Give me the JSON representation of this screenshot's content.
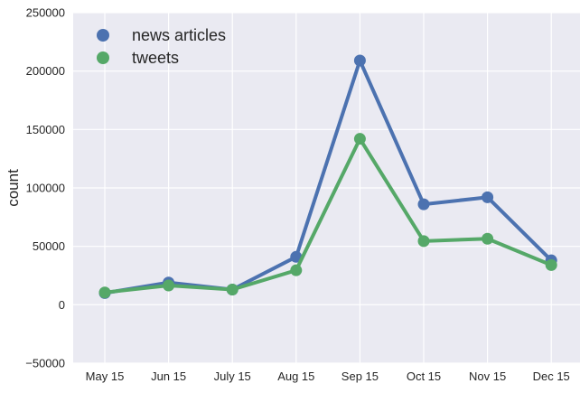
{
  "chart_data": {
    "type": "line",
    "title": "",
    "xlabel": "",
    "ylabel": "count",
    "categories": [
      "May 15",
      "Jun 15",
      "July 15",
      "Aug 15",
      "Sep 15",
      "Oct 15",
      "Nov 15",
      "Dec 15"
    ],
    "ylim": [
      -50000,
      250000
    ],
    "yticks": [
      -50000,
      0,
      50000,
      100000,
      150000,
      200000,
      250000
    ],
    "ytick_labels": [
      "−50000",
      "0",
      "50000",
      "100000",
      "150000",
      "200000",
      "250000"
    ],
    "grid": true,
    "legend_position": "top-left",
    "series": [
      {
        "name": "news articles",
        "color": "#4c72b0",
        "values": [
          10000,
          19000,
          13000,
          41000,
          209000,
          86000,
          92000,
          38000
        ]
      },
      {
        "name": "tweets",
        "color": "#55a868",
        "values": [
          10500,
          16500,
          13000,
          29500,
          142000,
          54500,
          56500,
          34000
        ]
      }
    ]
  }
}
